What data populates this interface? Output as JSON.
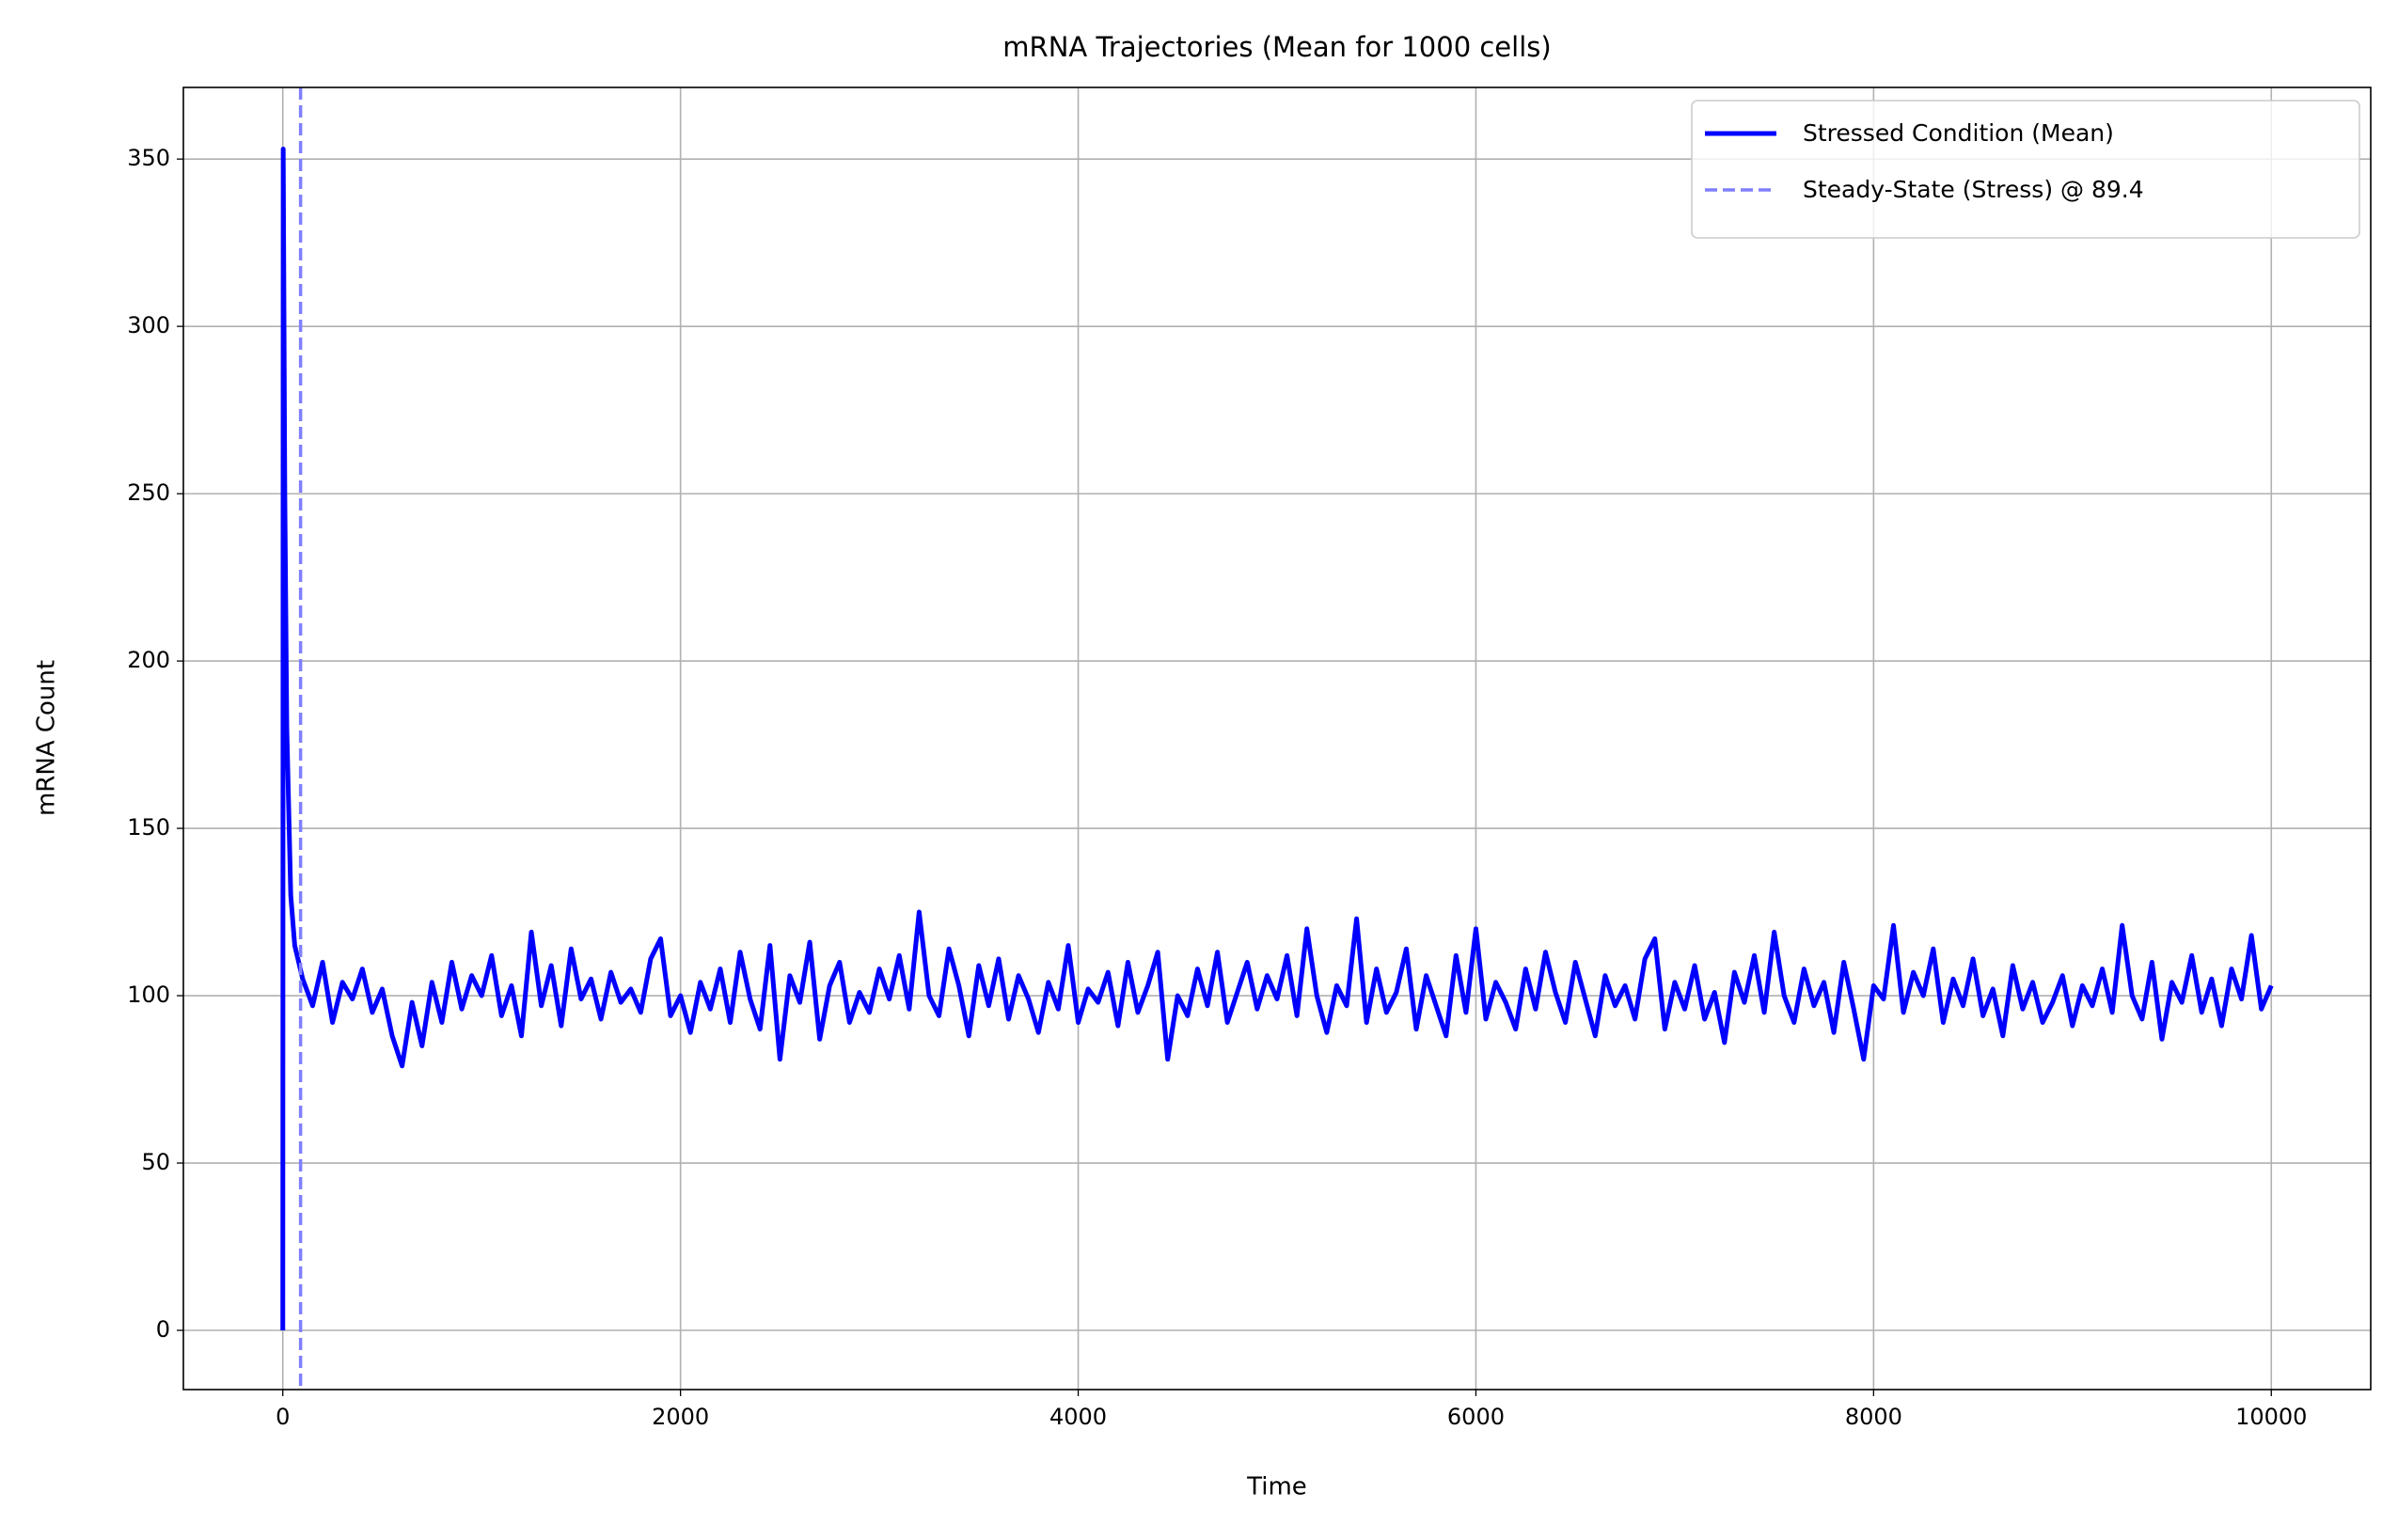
{
  "chart_data": {
    "type": "line",
    "title": "mRNA Trajectories (Mean for 1000 cells)",
    "x_label": "Time",
    "y_label": "mRNA Count",
    "x": [
      0,
      2,
      10,
      20,
      40,
      60,
      100,
      150,
      200,
      250,
      300,
      350,
      400,
      450,
      500,
      550,
      600,
      650,
      700,
      750,
      800,
      850,
      900,
      950,
      1000,
      1050,
      1100,
      1150,
      1200,
      1250,
      1300,
      1350,
      1400,
      1450,
      1500,
      1550,
      1600,
      1650,
      1700,
      1750,
      1800,
      1850,
      1900,
      1950,
      2000,
      2050,
      2100,
      2150,
      2200,
      2250,
      2300,
      2350,
      2400,
      2450,
      2500,
      2550,
      2600,
      2650,
      2700,
      2750,
      2800,
      2850,
      2900,
      2950,
      3000,
      3050,
      3100,
      3150,
      3200,
      3250,
      3300,
      3350,
      3400,
      3450,
      3500,
      3550,
      3600,
      3650,
      3700,
      3750,
      3800,
      3850,
      3900,
      3950,
      4000,
      4050,
      4100,
      4150,
      4200,
      4250,
      4300,
      4350,
      4400,
      4450,
      4500,
      4550,
      4600,
      4650,
      4700,
      4750,
      4800,
      4850,
      4900,
      4950,
      5000,
      5050,
      5100,
      5150,
      5200,
      5250,
      5300,
      5350,
      5400,
      5450,
      5500,
      5550,
      5600,
      5650,
      5700,
      5750,
      5800,
      5850,
      5900,
      5950,
      6000,
      6050,
      6100,
      6150,
      6200,
      6250,
      6300,
      6350,
      6400,
      6450,
      6500,
      6550,
      6600,
      6650,
      6700,
      6750,
      6800,
      6850,
      6900,
      6950,
      7000,
      7050,
      7100,
      7150,
      7200,
      7250,
      7300,
      7350,
      7400,
      7450,
      7500,
      7550,
      7600,
      7650,
      7700,
      7750,
      7800,
      7850,
      7900,
      7950,
      8000,
      8050,
      8100,
      8150,
      8200,
      8250,
      8300,
      8350,
      8400,
      8450,
      8500,
      8550,
      8600,
      8650,
      8700,
      8750,
      8800,
      8850,
      8900,
      8950,
      9000,
      9050,
      9100,
      9150,
      9200,
      9250,
      9300,
      9350,
      9400,
      9450,
      9500,
      9550,
      9600,
      9650,
      9700,
      9750,
      9800,
      9850,
      9900,
      9950,
      10000
    ],
    "series": [
      {
        "name": "Stressed Condition (Mean)",
        "color": "#0000ff",
        "values": [
          0,
          353,
          250,
          180,
          130,
          115,
          105,
          97,
          110,
          92,
          104,
          99,
          108,
          95,
          102,
          88,
          79,
          98,
          85,
          104,
          92,
          110,
          96,
          106,
          100,
          112,
          94,
          103,
          88,
          119,
          97,
          109,
          91,
          114,
          99,
          105,
          93,
          107,
          98,
          102,
          95,
          111,
          117,
          94,
          100,
          89,
          104,
          96,
          108,
          92,
          113,
          99,
          90,
          115,
          81,
          106,
          98,
          116,
          87,
          103,
          110,
          92,
          101,
          95,
          108,
          99,
          112,
          96,
          125,
          100,
          94,
          114,
          103,
          88,
          109,
          97,
          111,
          93,
          106,
          99,
          89,
          104,
          96,
          115,
          92,
          102,
          98,
          107,
          91,
          110,
          95,
          103,
          113,
          81,
          100,
          94,
          108,
          97,
          113,
          92,
          101,
          110,
          96,
          106,
          99,
          112,
          94,
          120,
          100,
          89,
          103,
          97,
          123,
          92,
          108,
          95,
          101,
          114,
          90,
          106,
          97,
          88,
          112,
          95,
          120,
          93,
          104,
          98,
          90,
          108,
          96,
          113,
          101,
          92,
          110,
          99,
          88,
          106,
          97,
          103,
          93,
          111,
          117,
          90,
          104,
          96,
          109,
          93,
          101,
          86,
          107,
          98,
          112,
          95,
          119,
          100,
          92,
          108,
          97,
          104,
          89,
          110,
          96,
          81,
          103,
          99,
          121,
          95,
          107,
          100,
          114,
          92,
          105,
          97,
          111,
          94,
          102,
          88,
          109,
          96,
          104,
          92,
          98,
          106,
          91,
          103,
          97,
          108,
          95,
          121,
          100,
          93,
          110,
          87,
          104,
          98,
          112,
          95,
          105,
          91,
          108,
          99,
          118,
          96,
          103
        ]
      }
    ],
    "vline": {
      "name": "Steady-State (Stress) @ 89.4",
      "x": 89.4,
      "color": "#7f7fff",
      "style": "dashed"
    },
    "xlim": [
      -500,
      10500
    ],
    "xticks": [
      0,
      2000,
      4000,
      6000,
      8000,
      10000
    ],
    "ylim": [
      -17.7,
      371.4
    ],
    "yticks": [
      0,
      50,
      100,
      150,
      200,
      250,
      300,
      350
    ],
    "grid": true,
    "legend": "upper right"
  }
}
